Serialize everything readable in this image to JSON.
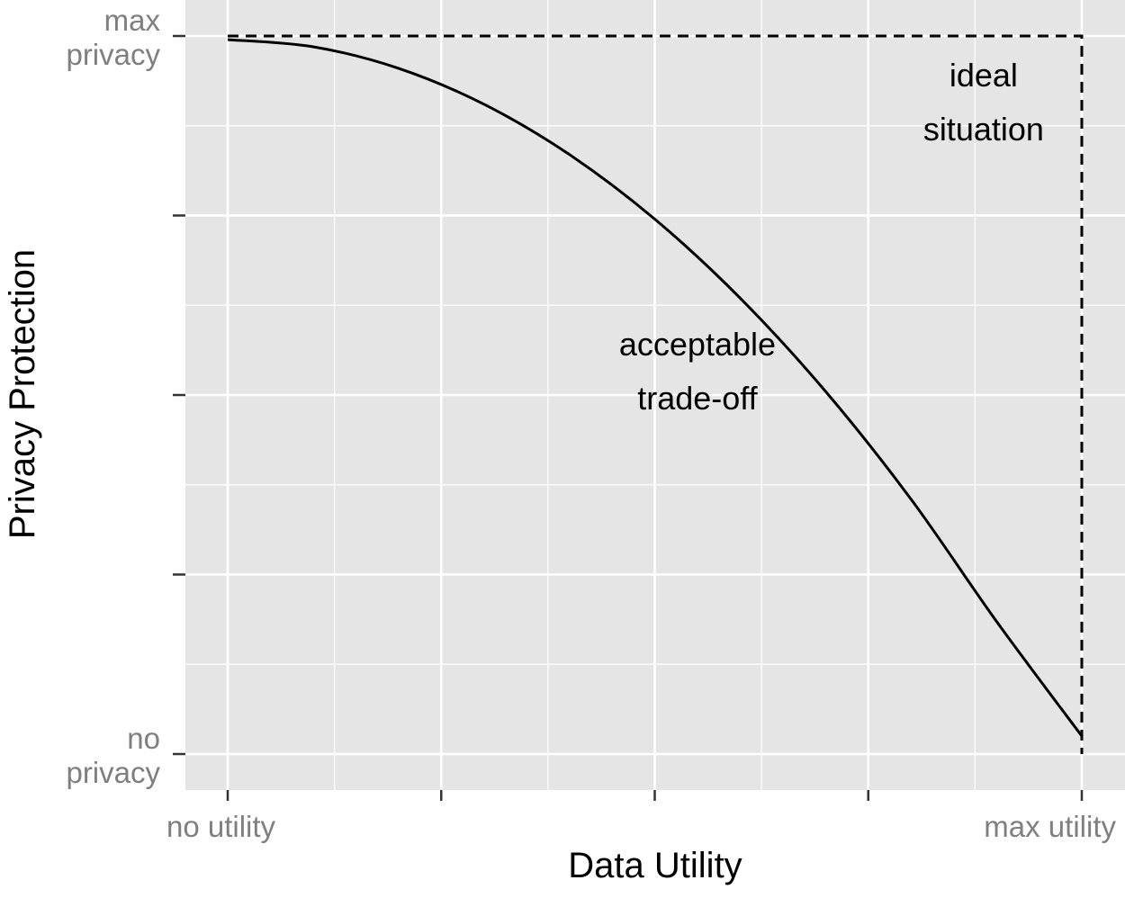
{
  "chart_data": {
    "type": "line",
    "xlabel": "Data Utility",
    "ylabel": "Privacy Protection",
    "xlim": [
      -0.02,
      1.0
    ],
    "ylim": [
      -0.05,
      1.05
    ],
    "x_ticks": [
      {
        "value": 0,
        "label": "no utility"
      },
      {
        "value": 0.25,
        "label": ""
      },
      {
        "value": 0.5,
        "label": ""
      },
      {
        "value": 0.75,
        "label": ""
      },
      {
        "value": 1.0,
        "label": "max utility"
      }
    ],
    "y_ticks": [
      {
        "value": 0,
        "label_lines": [
          "no",
          "privacy"
        ]
      },
      {
        "value": 0.25,
        "label_lines": []
      },
      {
        "value": 0.5,
        "label_lines": []
      },
      {
        "value": 0.75,
        "label_lines": []
      },
      {
        "value": 1.0,
        "label_lines": [
          "max",
          "privacy"
        ]
      }
    ],
    "grid": true,
    "colors": {
      "panel": "#e5e5e5",
      "grid": "#ffffff",
      "line": "#000000",
      "tick_text": "#7f7f7f"
    },
    "series": [
      {
        "style": "solid",
        "x": [
          0,
          0.1,
          0.2,
          0.3,
          0.4,
          0.5,
          0.6,
          0.7,
          0.8,
          0.9,
          1.0
        ],
        "y": [
          0.995,
          0.985,
          0.955,
          0.905,
          0.835,
          0.745,
          0.635,
          0.505,
          0.355,
          0.185,
          0.025
        ]
      },
      {
        "style": "dashed",
        "x": [
          0,
          1.0,
          1.0
        ],
        "y": [
          1.0,
          1.0,
          0.0
        ]
      }
    ],
    "annotations": [
      {
        "lines": [
          "ideal",
          "situation"
        ],
        "x": 0.885,
        "y": 0.93
      },
      {
        "lines": [
          "acceptable",
          "trade-off"
        ],
        "x": 0.55,
        "y": 0.555
      }
    ]
  }
}
